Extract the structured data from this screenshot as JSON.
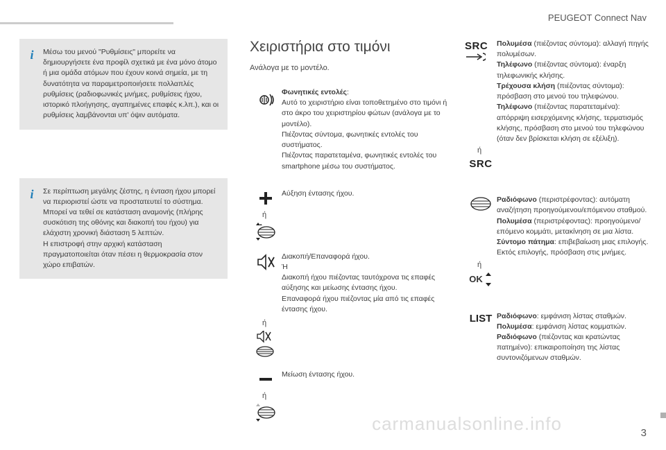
{
  "header": {
    "title": "PEUGEOT Connect Nav"
  },
  "left": {
    "info1": "Μέσω του μενού \"Ρυθμίσεις\" μπορείτε να δημιουργήσετε ένα προφίλ σχετικά με ένα μόνο άτομο ή μια ομάδα ατόμων που έχουν κοινά σημεία, με τη δυνατότητα να παραμετροποιήσετε πολλαπλές ρυθμίσεις (ραδιοφωνικές μνήμες, ρυθμίσεις ήχου, ιστορικό πλοήγησης, αγαπημένες επαφές κ.λπ.), και οι ρυθμίσεις λαμβάνονται υπ' όψιν αυτόματα.",
    "info2": "Σε περίπτωση μεγάλης ζέστης, η ένταση ήχου μπορεί να περιοριστεί ώστε να προστατευτεί το σύστημα. Μπορεί να τεθεί σε κατάσταση αναμονής (πλήρης συσκότιση της οθόνης και διακοπή του ήχου) για ελάχιστη χρονική διάσταση 5 λεπτών.\nΗ επιστροφή στην αρχική κατάσταση πραγματοποιείται όταν πέσει η θερμοκρασία στον χώρο επιβατών."
  },
  "mid": {
    "title": "Χειριστήρια στο τιμόνι",
    "subtitle": "Ανάλογα με το μοντέλο.",
    "voice_title": "Φωνητικές εντολές",
    "voice_body": "Αυτό το χειριστήριο είναι τοποθετημένο στο τιμόνι ή στο άκρο του χειριστηρίου φώτων (ανάλογα με το μοντέλο).\nΠιέζοντας σύντομα, φωνητικές εντολές του συστήματος.\nΠιέζοντας παρατεταμένα, φωνητικές εντολές του smartphone μέσω του συστήματος.",
    "vol_up": "Αύξηση έντασης ήχου.",
    "mute": "Διακοπή/Επαναφορά ήχου.\nΉ\nΔιακοπή ήχου πιέζοντας ταυτόχρονα τις επαφές αύξησης και μείωσης έντασης ήχου.\nΕπαναφορά ήχου πιέζοντας μία από τις επαφές έντασης ήχου.",
    "vol_down": "Μείωση έντασης ήχου.",
    "or": "ή"
  },
  "right": {
    "src_label": "SRC",
    "src_body": "<b>Πολυμέσα</b> (πιέζοντας σύντομα): αλλαγή πηγής πολυμέσων.<br><b>Τηλέφωνο</b> (πιέζοντας σύντομα): έναρξη τηλεφωνικής κλήσης.<br><b>Τρέχουσα κλήση</b> (πιέζοντας σύντομα): πρόσβαση στο μενού του τηλεφώνου.<br><b>Τηλέφωνο</b> (πιέζοντας παρατεταμένα): απόρριψη εισερχόμενης κλήσης, τερματισμός κλήσης, πρόσβαση στο μενού του τηλεφώνου (όταν δεν βρίσκεται κλήση σε εξέλιξη).",
    "wheel_body": "<b>Ραδιόφωνο</b> (περιστρέφοντας): αυτόματη αναζήτηση προηγούμενου/επόμενου σταθμού.<br><b>Πολυμέσα</b> (περιστρέφοντας): προηγούμενο/επόμενο κομμάτι, μετακίνηση σε μια λίστα.<br><b>Σύντομο πάτημα</b>: επιβεβαίωση μιας επιλογής. Εκτός επιλογής, πρόσβαση στις μνήμες.",
    "list_label": "LIST",
    "list_body": "<b>Ραδιόφωνο</b>: εμφάνιση λίστας σταθμών.<br><b>Πολυμέσα</b>: εμφάνιση λίστας κομματιών.<br><b>Ραδιόφωνο</b> (πιέζοντας και κρατώντας πατημένο): επικαιροποίηση της λίστας συντονιζόμενων σταθμών.",
    "ok_label": "OK",
    "or": "ή"
  },
  "footer": {
    "watermark": "carmanualsonline.info",
    "page": "3"
  }
}
